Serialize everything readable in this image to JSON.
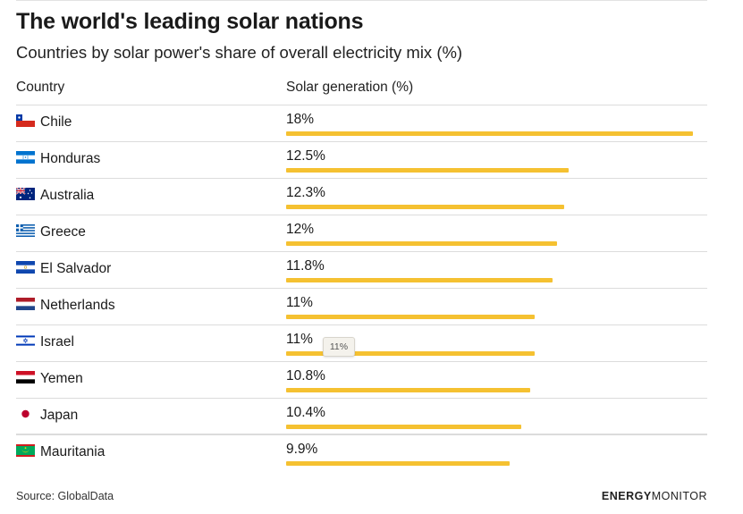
{
  "title": "The world's leading solar nations",
  "subtitle": "Countries by solar power's share of overall electricity mix (%)",
  "columns": {
    "country": "Country",
    "value": "Solar generation (%)"
  },
  "tooltip": "11%",
  "source": "Source: GlobalData",
  "brand": {
    "part1": "ENERGY",
    "part2": "MONITOR"
  },
  "colors": {
    "bar": "#f5c131",
    "rule": "#dcdcdc"
  },
  "chart_data": {
    "type": "bar",
    "orientation": "horizontal",
    "title": "The world's leading solar nations",
    "subtitle": "Countries by solar power's share of overall electricity mix (%)",
    "xlabel": "Solar generation (%)",
    "ylabel": "Country",
    "xlim": [
      0,
      18
    ],
    "grid": false,
    "categories": [
      "Chile",
      "Honduras",
      "Australia",
      "Greece",
      "El Salvador",
      "Netherlands",
      "Israel",
      "Yemen",
      "Japan",
      "Mauritania"
    ],
    "flags": [
      "chile-flag-icon",
      "honduras-flag-icon",
      "australia-flag-icon",
      "greece-flag-icon",
      "el-salvador-flag-icon",
      "netherlands-flag-icon",
      "israel-flag-icon",
      "yemen-flag-icon",
      "japan-flag-icon",
      "mauritania-flag-icon"
    ],
    "values": [
      18,
      12.5,
      12.3,
      12,
      11.8,
      11,
      11,
      10.8,
      10.4,
      9.9
    ],
    "labels": [
      "18%",
      "12.5%",
      "12.3%",
      "12%",
      "11.8%",
      "11%",
      "11%",
      "10.8%",
      "10.4%",
      "9.9%"
    ]
  }
}
